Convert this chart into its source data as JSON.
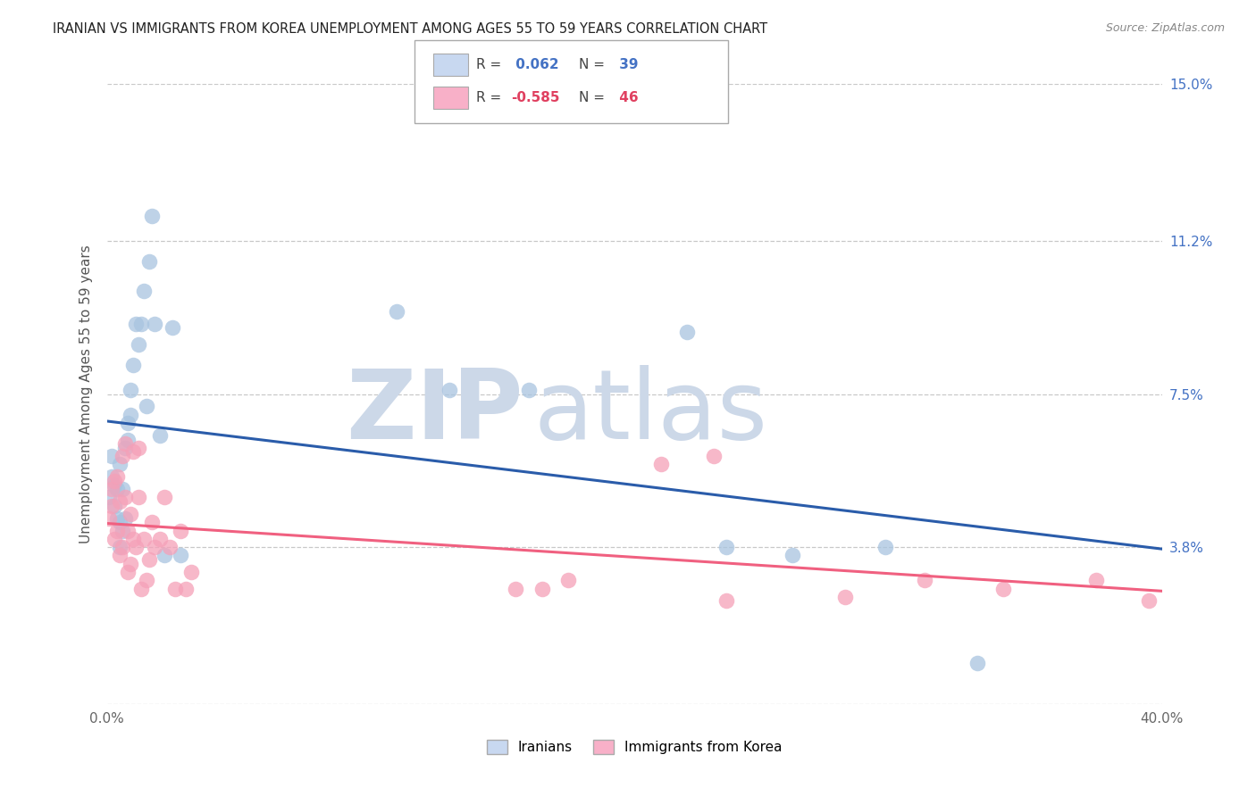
{
  "title": "IRANIAN VS IMMIGRANTS FROM KOREA UNEMPLOYMENT AMONG AGES 55 TO 59 YEARS CORRELATION CHART",
  "source": "Source: ZipAtlas.com",
  "ylabel": "Unemployment Among Ages 55 to 59 years",
  "xlim": [
    0.0,
    0.4
  ],
  "ylim": [
    0.0,
    0.15
  ],
  "ytick_vals": [
    0.0,
    0.038,
    0.075,
    0.112,
    0.15
  ],
  "ytick_labels": [
    "",
    "3.8%",
    "7.5%",
    "11.2%",
    "15.0%"
  ],
  "xtick_vals": [
    0.0,
    0.1,
    0.2,
    0.3,
    0.4
  ],
  "xtick_labels": [
    "0.0%",
    "",
    "",
    "",
    "40.0%"
  ],
  "bg_color": "#ffffff",
  "grid_color": "#c8c8c8",
  "watermark_color": "#ccd8e8",
  "iran_dot_color": "#a8c4e0",
  "korea_dot_color": "#f5a0b8",
  "iran_line_color": "#2a5caa",
  "korea_line_color": "#f06080",
  "iran_legend_box": "#c8d8f0",
  "korea_legend_box": "#f8b0c8",
  "R_iran": 0.062,
  "N_iran": 39,
  "R_korea": -0.585,
  "N_korea": 46,
  "iranians_x": [
    0.001,
    0.002,
    0.002,
    0.003,
    0.003,
    0.004,
    0.004,
    0.005,
    0.005,
    0.005,
    0.006,
    0.006,
    0.007,
    0.007,
    0.008,
    0.008,
    0.009,
    0.009,
    0.01,
    0.011,
    0.012,
    0.013,
    0.014,
    0.015,
    0.016,
    0.017,
    0.018,
    0.02,
    0.022,
    0.025,
    0.028,
    0.11,
    0.13,
    0.16,
    0.22,
    0.235,
    0.26,
    0.295,
    0.33
  ],
  "iranians_y": [
    0.05,
    0.055,
    0.06,
    0.048,
    0.053,
    0.045,
    0.052,
    0.038,
    0.044,
    0.058,
    0.042,
    0.052,
    0.045,
    0.062,
    0.064,
    0.068,
    0.07,
    0.076,
    0.082,
    0.092,
    0.087,
    0.092,
    0.1,
    0.072,
    0.107,
    0.118,
    0.092,
    0.065,
    0.036,
    0.091,
    0.036,
    0.095,
    0.076,
    0.076,
    0.09,
    0.038,
    0.036,
    0.038,
    0.01
  ],
  "korea_x": [
    0.001,
    0.002,
    0.002,
    0.003,
    0.003,
    0.004,
    0.004,
    0.005,
    0.005,
    0.006,
    0.006,
    0.007,
    0.007,
    0.008,
    0.008,
    0.009,
    0.009,
    0.01,
    0.01,
    0.011,
    0.012,
    0.012,
    0.013,
    0.014,
    0.015,
    0.016,
    0.017,
    0.018,
    0.02,
    0.022,
    0.024,
    0.026,
    0.028,
    0.03,
    0.032,
    0.155,
    0.165,
    0.175,
    0.21,
    0.23,
    0.235,
    0.28,
    0.31,
    0.34,
    0.375,
    0.395
  ],
  "korea_y": [
    0.045,
    0.048,
    0.052,
    0.04,
    0.054,
    0.042,
    0.055,
    0.036,
    0.049,
    0.038,
    0.06,
    0.05,
    0.063,
    0.032,
    0.042,
    0.034,
    0.046,
    0.04,
    0.061,
    0.038,
    0.05,
    0.062,
    0.028,
    0.04,
    0.03,
    0.035,
    0.044,
    0.038,
    0.04,
    0.05,
    0.038,
    0.028,
    0.042,
    0.028,
    0.032,
    0.028,
    0.028,
    0.03,
    0.058,
    0.06,
    0.025,
    0.026,
    0.03,
    0.028,
    0.03,
    0.025
  ]
}
